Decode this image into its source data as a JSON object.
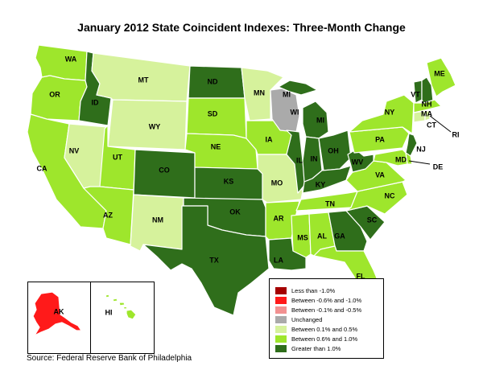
{
  "title": "January 2012 State Coincident Indexes: Three-Month Change",
  "source": "Source: Federal Reserve Bank of Philadelphia",
  "colors": {
    "lt_neg1": "#a50000",
    "neg06_neg1": "#ff1a1a",
    "neg01_neg05": "#f29191",
    "unchanged": "#aaaaaa",
    "pos01_05": "#d6f29c",
    "pos06_10": "#9ee62c",
    "gt1": "#2f6e1b"
  },
  "legend": [
    {
      "label": "Less than -1.0%",
      "color": "#a50000"
    },
    {
      "label": "Between -0.6% and -1.0%",
      "color": "#ff1a1a"
    },
    {
      "label": "Between -0.1% and -0.5%",
      "color": "#f29191"
    },
    {
      "label": "Unchanged",
      "color": "#aaaaaa"
    },
    {
      "label": "Between 0.1% and 0.5%",
      "color": "#d6f29c"
    },
    {
      "label": "Between 0.6% and 1.0%",
      "color": "#9ee62c"
    },
    {
      "label": "Greater than 1.0%",
      "color": "#2f6e1b"
    }
  ],
  "states": {
    "WA": "pos06_10",
    "OR": "pos06_10",
    "CA": "pos06_10",
    "ID": "gt1",
    "NV": "pos01_05",
    "MT": "pos01_05",
    "WY": "pos01_05",
    "UT": "pos06_10",
    "AZ": "pos06_10",
    "CO": "gt1",
    "NM": "pos01_05",
    "ND": "gt1",
    "SD": "pos06_10",
    "NE": "pos06_10",
    "KS": "gt1",
    "OK": "gt1",
    "TX": "gt1",
    "MN": "pos01_05",
    "IA": "pos06_10",
    "MO": "pos01_05",
    "AR": "pos06_10",
    "LA": "gt1",
    "WI": "unchanged",
    "IL": "gt1",
    "MI": "gt1",
    "IN": "gt1",
    "OH": "gt1",
    "KY": "gt1",
    "TN": "pos06_10",
    "MS": "pos06_10",
    "AL": "pos06_10",
    "GA": "gt1",
    "FL": "pos06_10",
    "SC": "gt1",
    "NC": "pos06_10",
    "VA": "pos06_10",
    "WV": "gt1",
    "PA": "pos06_10",
    "NY": "pos06_10",
    "ME": "pos06_10",
    "VT": "gt1",
    "NH": "gt1",
    "MA": "pos06_10",
    "CT": "pos01_05",
    "RI": "pos01_05",
    "NJ": "gt1",
    "DE": "pos06_10",
    "MD": "pos06_10",
    "AK": "neg06_neg1",
    "HI": "pos06_10"
  },
  "labels": {
    "WA": "WA",
    "OR": "OR",
    "CA": "CA",
    "ID": "ID",
    "NV": "NV",
    "MT": "MT",
    "WY": "WY",
    "UT": "UT",
    "AZ": "AZ",
    "CO": "CO",
    "NM": "NM",
    "ND": "ND",
    "SD": "SD",
    "NE": "NE",
    "KS": "KS",
    "OK": "OK",
    "TX": "TX",
    "MN": "MN",
    "IA": "IA",
    "MO": "MO",
    "AR": "AR",
    "LA": "LA",
    "WI": "WI",
    "IL": "IL",
    "MI": "MI",
    "MI_UP": "MI",
    "IN": "IN",
    "OH": "OH",
    "KY": "KY",
    "TN": "TN",
    "MS": "MS",
    "AL": "AL",
    "GA": "GA",
    "FL": "FL",
    "SC": "SC",
    "NC": "NC",
    "VA": "VA",
    "WV": "WV",
    "PA": "PA",
    "NY": "NY",
    "ME": "ME",
    "VT": "VT",
    "NH": "NH",
    "MA": "MA",
    "CT": "CT",
    "RI": "RI",
    "NJ": "NJ",
    "DE": "DE",
    "MD": "MD",
    "AK": "AK",
    "HI": "HI"
  }
}
